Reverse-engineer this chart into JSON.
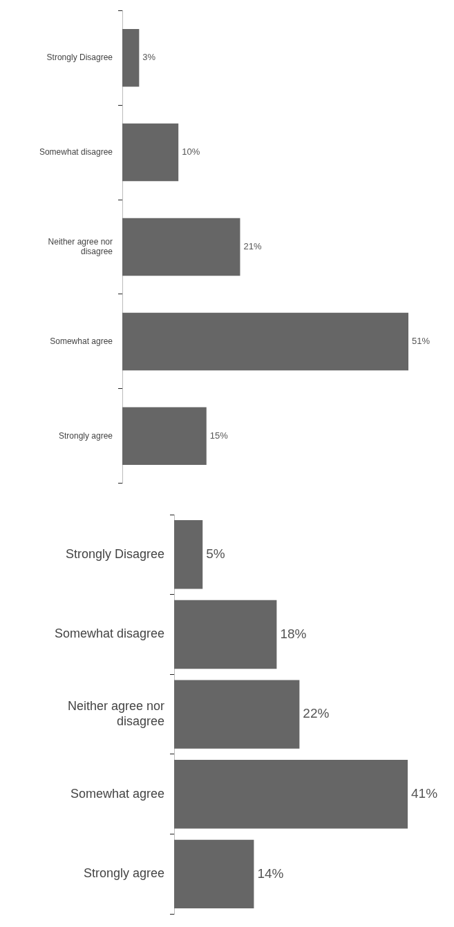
{
  "chart_data": [
    {
      "type": "bar",
      "orientation": "horizontal",
      "categories": [
        "Strongly Disagree",
        "Somewhat disagree",
        "Neither agree nor disagree",
        "Somewhat agree",
        "Strongly agree"
      ],
      "values": [
        3,
        10,
        21,
        51,
        15
      ],
      "value_labels": [
        "3%",
        "10%",
        "21%",
        "51%",
        "15%"
      ],
      "color": "#666666",
      "legend": false,
      "tick_labels": "y"
    },
    {
      "type": "bar",
      "orientation": "horizontal",
      "categories": [
        "Strongly Disagree",
        "Somewhat disagree",
        "Neither agree nor disagree",
        "Somewhat agree",
        "Strongly agree"
      ],
      "values": [
        5,
        18,
        22,
        41,
        14
      ],
      "value_labels": [
        "5%",
        "18%",
        "22%",
        "41%",
        "14%"
      ],
      "color": "#666666",
      "legend": false,
      "tick_labels": "y"
    }
  ]
}
